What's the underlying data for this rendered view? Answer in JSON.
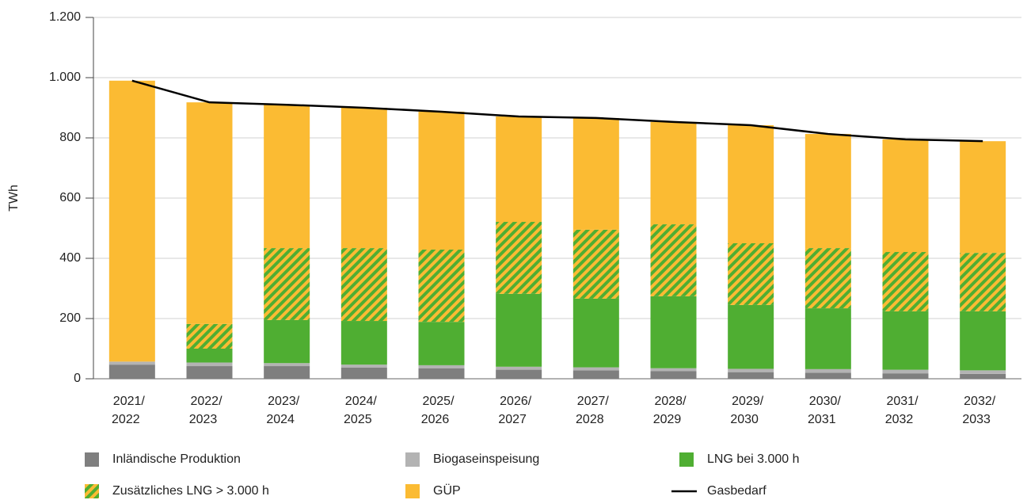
{
  "chart_data": {
    "type": "stacked_bar_line",
    "y_label": "TWh",
    "categories": [
      [
        "2021/",
        "2022"
      ],
      [
        "2022/",
        "2023"
      ],
      [
        "2023/",
        "2024"
      ],
      [
        "2024/",
        "2025"
      ],
      [
        "2025/",
        "2026"
      ],
      [
        "2026/",
        "2027"
      ],
      [
        "2027/",
        "2028"
      ],
      [
        "2028/",
        "2029"
      ],
      [
        "2029/",
        "2030"
      ],
      [
        "2030/",
        "2031"
      ],
      [
        "2031/",
        "2032"
      ],
      [
        "2032/",
        "2033"
      ]
    ],
    "series": [
      {
        "name": "Inländische Produktion",
        "color": "#7f7f7f",
        "values": [
          47,
          42,
          42,
          37,
          35,
          30,
          28,
          25,
          22,
          20,
          18,
          16
        ]
      },
      {
        "name": "Biogaseinspeisung",
        "color": "#b3b3b3",
        "values": [
          10,
          12,
          10,
          10,
          10,
          10,
          10,
          10,
          11,
          12,
          12,
          12
        ]
      },
      {
        "name": "LNG bei 3.000 h",
        "color": "#4fae32",
        "values": [
          0,
          46,
          143,
          145,
          144,
          242,
          228,
          239,
          212,
          202,
          194,
          196
        ]
      },
      {
        "name": "Zusätzliches LNG > 3.000 h",
        "color": "#4fae32",
        "hatch": "#fbbb33",
        "values": [
          0,
          82,
          239,
          242,
          240,
          239,
          229,
          239,
          205,
          200,
          197,
          194
        ]
      },
      {
        "name": "GÜP",
        "color": "#fbbb33",
        "values": [
          933,
          736,
          476,
          466,
          458,
          350,
          371,
          340,
          392,
          379,
          374,
          371
        ]
      }
    ],
    "line": {
      "name": "Gasbedarf",
      "color": "#000000",
      "values": [
        990,
        918,
        910,
        900,
        887,
        871,
        866,
        853,
        842,
        813,
        795,
        789
      ]
    },
    "ylim": [
      0,
      1200
    ],
    "yticks": [
      0,
      200,
      400,
      600,
      800,
      {
        "value": 1000,
        "label": "1.000"
      },
      {
        "value": 1200,
        "label": "1.200"
      }
    ],
    "grid": true
  }
}
